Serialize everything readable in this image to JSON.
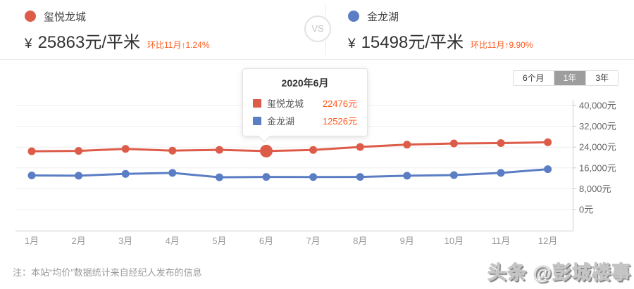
{
  "header": {
    "left": {
      "name": "玺悦龙城",
      "currency": "¥",
      "price": "25863",
      "unit": "元/平米",
      "mom_text": "环比11月↑1.24%"
    },
    "vs_label": "VS",
    "right": {
      "name": "金龙湖",
      "currency": "¥",
      "price": "15498",
      "unit": "元/平米",
      "mom_text": "环比11月↑9.90%"
    }
  },
  "range_tabs": [
    {
      "label": "6个月",
      "active": false
    },
    {
      "label": "1年",
      "active": true
    },
    {
      "label": "3年",
      "active": false
    }
  ],
  "tooltip": {
    "title": "2020年6月",
    "rows": [
      {
        "name": "玺悦龙城",
        "value": "22476元",
        "color": "#dd5b49"
      },
      {
        "name": "金龙湖",
        "value": "12526元",
        "color": "#5a7dc4"
      }
    ]
  },
  "chart_data": {
    "type": "line",
    "categories": [
      "1月",
      "2月",
      "3月",
      "4月",
      "5月",
      "6月",
      "7月",
      "8月",
      "9月",
      "10月",
      "11月",
      "12月"
    ],
    "series": [
      {
        "name": "玺悦龙城",
        "color": "#dd5b49",
        "values": [
          22400,
          22550,
          23300,
          22650,
          22950,
          22476,
          22900,
          24050,
          24950,
          25400,
          25546,
          25863
        ]
      },
      {
        "name": "金龙湖",
        "color": "#5a7dc4",
        "values": [
          13100,
          13000,
          13700,
          14100,
          12400,
          12526,
          12500,
          12550,
          13000,
          13250,
          14100,
          15498
        ]
      }
    ],
    "ylim": [
      0,
      40000
    ],
    "y_ticks": [
      "0元",
      "8,000元",
      "16,000元",
      "24,000元",
      "32,000元",
      "40,000元"
    ],
    "y_axis_side": "right",
    "grid": true,
    "highlight": {
      "series_index": 0,
      "index": 5
    },
    "title": "",
    "xlabel": "",
    "ylabel": ""
  },
  "note": "注：本站“均价”数据统计来自经纪人发布的信息",
  "watermark": "头条 @彭城楼事",
  "colors": {
    "series_red": "#dd5b49",
    "series_blue": "#5a7dc4",
    "change_orange": "#ff5a1e",
    "tab_active_bg": "#9d9d9d"
  }
}
